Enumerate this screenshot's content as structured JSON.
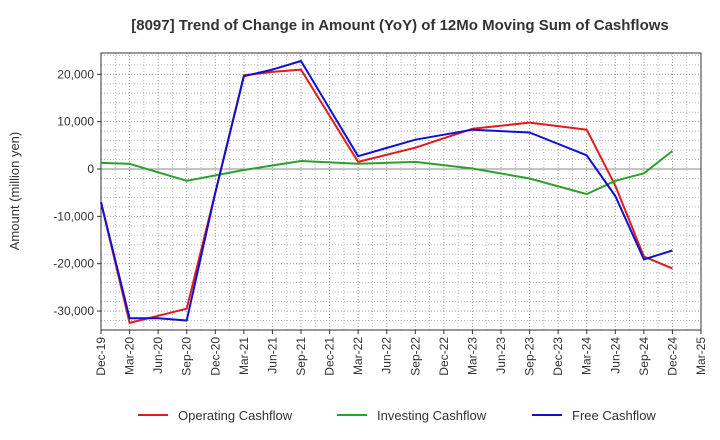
{
  "chart_data": {
    "type": "line",
    "title": "[8097]  Trend of Change in Amount (YoY) of 12Mo Moving Sum of Cashflows",
    "ylabel": "Amount (million yen)",
    "xlabel": "",
    "ylim": [
      -34000,
      24500
    ],
    "yticks": [
      20000,
      10000,
      0,
      -10000,
      -20000,
      -30000
    ],
    "ytick_labels": [
      "20,000",
      "10,000",
      "0",
      "-10,000",
      "-20,000",
      "-30,000"
    ],
    "categories": [
      "Dec-19",
      "Mar-20",
      "Jun-20",
      "Sep-20",
      "Dec-20",
      "Mar-21",
      "Jun-21",
      "Sep-21",
      "Dec-21",
      "Mar-22",
      "Jun-22",
      "Sep-22",
      "Dec-22",
      "Mar-23",
      "Jun-23",
      "Sep-23",
      "Dec-23",
      "Mar-24",
      "Jun-24",
      "Sep-24",
      "Dec-24",
      "Mar-25"
    ],
    "grid": true,
    "legend_position": "bottom",
    "series": [
      {
        "name": "Operating Cashflow",
        "color": "#e41a1c",
        "values": [
          -7000,
          -32500,
          -31000,
          -29500,
          -5000,
          19800,
          20500,
          21000,
          null,
          1500,
          null,
          4500,
          null,
          8500,
          null,
          9800,
          null,
          8300,
          -3500,
          -18500,
          -21000,
          null
        ]
      },
      {
        "name": "Investing Cashflow",
        "color": "#2ca02c",
        "values": [
          1300,
          1100,
          null,
          -2500,
          null,
          -200,
          null,
          1700,
          null,
          1100,
          null,
          1500,
          null,
          100,
          null,
          -2000,
          null,
          -5300,
          -2500,
          -900,
          3800,
          null
        ]
      },
      {
        "name": "Free Cashflow",
        "color": "#1010d0",
        "values": [
          -7000,
          -31500,
          -31500,
          -32000,
          -5000,
          19600,
          21000,
          22800,
          null,
          2700,
          null,
          6200,
          null,
          8300,
          null,
          7700,
          null,
          2900,
          -5700,
          -19100,
          -17200,
          null
        ]
      }
    ]
  }
}
